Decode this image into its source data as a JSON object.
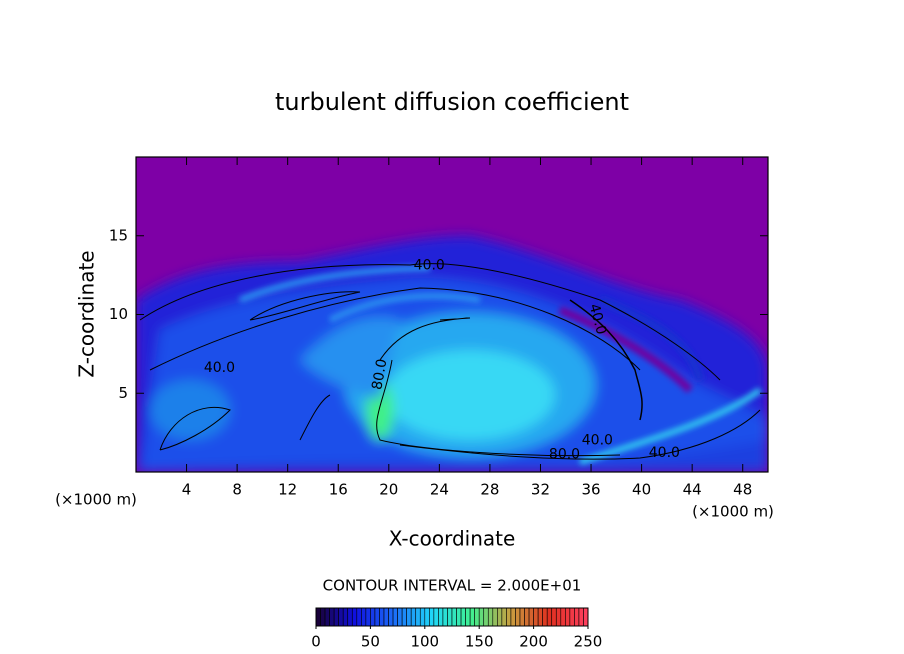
{
  "chart_data": {
    "type": "contour",
    "title": "turbulent diffusion coefficient",
    "xlabel": "X-coordinate",
    "ylabel": "Z-coordinate",
    "x_unit_left": "(×1000 m)",
    "x_unit_right": "(×1000 m)",
    "xlim": [
      0,
      50
    ],
    "xticks": [
      4,
      8,
      12,
      16,
      20,
      24,
      28,
      32,
      36,
      40,
      44,
      48
    ],
    "ylim": [
      0,
      20
    ],
    "yticks": [
      5,
      10,
      15
    ],
    "contour_interval_text": "CONTOUR INTERVAL = 2.000E+01",
    "clim": [
      0,
      250
    ],
    "cticks": [
      0,
      50,
      100,
      150,
      200,
      250
    ],
    "colormap": [
      "#1a0030",
      "#1010e0",
      "#1c6cf8",
      "#20d8f8",
      "#40f090",
      "#c8a040",
      "#e03020",
      "#ff4060"
    ],
    "annotations": [
      {
        "text": "40.0",
        "x": 23.2,
        "y": 13.1
      },
      {
        "text": "40.0",
        "x": 6.6,
        "y": 6.6
      },
      {
        "text": "80.0",
        "x": 19.3,
        "y": 6.2
      },
      {
        "text": "40.0",
        "x": 36.5,
        "y": 9.7
      },
      {
        "text": "40.0",
        "x": 36.5,
        "y": 2.0
      },
      {
        "text": "80.0",
        "x": 33.9,
        "y": 1.1
      },
      {
        "text": "40.0",
        "x": 41.8,
        "y": 1.2
      }
    ]
  }
}
